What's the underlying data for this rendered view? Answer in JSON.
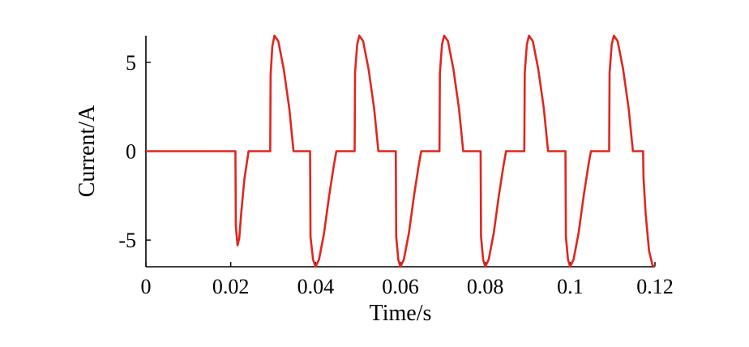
{
  "chart_data": {
    "type": "line",
    "title": "",
    "xlabel": "Time/s",
    "ylabel": "Current/A",
    "xlim": [
      0,
      0.12
    ],
    "ylim": [
      -6.5,
      6.5
    ],
    "xticks": [
      0,
      0.02,
      0.04,
      0.06,
      0.08,
      0.1,
      0.12
    ],
    "xtick_labels": [
      "0",
      "0.02",
      "0.04",
      "0.06",
      "0.08",
      "0.1",
      "0.12"
    ],
    "yticks": [
      5,
      0,
      -5
    ],
    "ytick_labels": [
      "5",
      "0",
      "-5"
    ],
    "grid": false,
    "legend": "none",
    "series": [
      {
        "color": "#e0261f",
        "points": [
          [
            0,
            0
          ],
          [
            0.0211,
            0
          ],
          [
            0.0212,
            -4.2
          ],
          [
            0.0216,
            -5.3
          ],
          [
            0.022,
            -4.9
          ],
          [
            0.0225,
            -3.4
          ],
          [
            0.0232,
            -1.6
          ],
          [
            0.0242,
            0
          ],
          [
            0.0293,
            0
          ],
          [
            0.0294,
            4.3
          ],
          [
            0.0298,
            5.9
          ],
          [
            0.0303,
            6.5
          ],
          [
            0.0312,
            6.2
          ],
          [
            0.0325,
            4.6
          ],
          [
            0.0338,
            2.4
          ],
          [
            0.0348,
            0
          ],
          [
            0.0387,
            0
          ],
          [
            0.0388,
            -4.8
          ],
          [
            0.0394,
            -6.1
          ],
          [
            0.04,
            -6.5
          ],
          [
            0.0408,
            -6.1
          ],
          [
            0.042,
            -4.6
          ],
          [
            0.0432,
            -2.5
          ],
          [
            0.0443,
            -0.8
          ],
          [
            0.0449,
            0
          ],
          [
            0.0492,
            0
          ],
          [
            0.0493,
            4.4
          ],
          [
            0.0498,
            6.0
          ],
          [
            0.0503,
            6.5
          ],
          [
            0.0512,
            6.2
          ],
          [
            0.0525,
            4.6
          ],
          [
            0.0538,
            2.4
          ],
          [
            0.0548,
            0
          ],
          [
            0.0589,
            0
          ],
          [
            0.059,
            -4.8
          ],
          [
            0.0595,
            -6.1
          ],
          [
            0.06,
            -6.5
          ],
          [
            0.0608,
            -6.1
          ],
          [
            0.062,
            -4.6
          ],
          [
            0.0632,
            -2.5
          ],
          [
            0.0643,
            -0.8
          ],
          [
            0.0649,
            0
          ],
          [
            0.0692,
            0
          ],
          [
            0.0693,
            4.4
          ],
          [
            0.0698,
            6.0
          ],
          [
            0.0703,
            6.5
          ],
          [
            0.0712,
            6.2
          ],
          [
            0.0725,
            4.6
          ],
          [
            0.0738,
            2.4
          ],
          [
            0.0748,
            0
          ],
          [
            0.0789,
            0
          ],
          [
            0.079,
            -4.8
          ],
          [
            0.0795,
            -6.1
          ],
          [
            0.08,
            -6.5
          ],
          [
            0.0808,
            -6.1
          ],
          [
            0.082,
            -4.6
          ],
          [
            0.0832,
            -2.5
          ],
          [
            0.0843,
            -0.8
          ],
          [
            0.0849,
            0
          ],
          [
            0.0892,
            0
          ],
          [
            0.0893,
            4.4
          ],
          [
            0.0898,
            6.0
          ],
          [
            0.0903,
            6.5
          ],
          [
            0.0912,
            6.2
          ],
          [
            0.0925,
            4.6
          ],
          [
            0.0938,
            2.4
          ],
          [
            0.0948,
            0
          ],
          [
            0.0989,
            0
          ],
          [
            0.099,
            -4.8
          ],
          [
            0.0995,
            -6.1
          ],
          [
            0.1,
            -6.5
          ],
          [
            0.1008,
            -6.1
          ],
          [
            0.102,
            -4.6
          ],
          [
            0.1032,
            -2.5
          ],
          [
            0.1043,
            -0.8
          ],
          [
            0.1049,
            0
          ],
          [
            0.1092,
            0
          ],
          [
            0.1093,
            4.4
          ],
          [
            0.1098,
            6.0
          ],
          [
            0.1103,
            6.5
          ],
          [
            0.1112,
            6.2
          ],
          [
            0.1125,
            4.6
          ],
          [
            0.1138,
            2.4
          ],
          [
            0.1148,
            0
          ],
          [
            0.1172,
            0
          ],
          [
            0.1173,
            -1.5
          ],
          [
            0.1178,
            -3.5
          ],
          [
            0.1186,
            -5.6
          ],
          [
            0.1194,
            -6.4
          ],
          [
            0.12,
            -6.5
          ]
        ]
      }
    ]
  }
}
